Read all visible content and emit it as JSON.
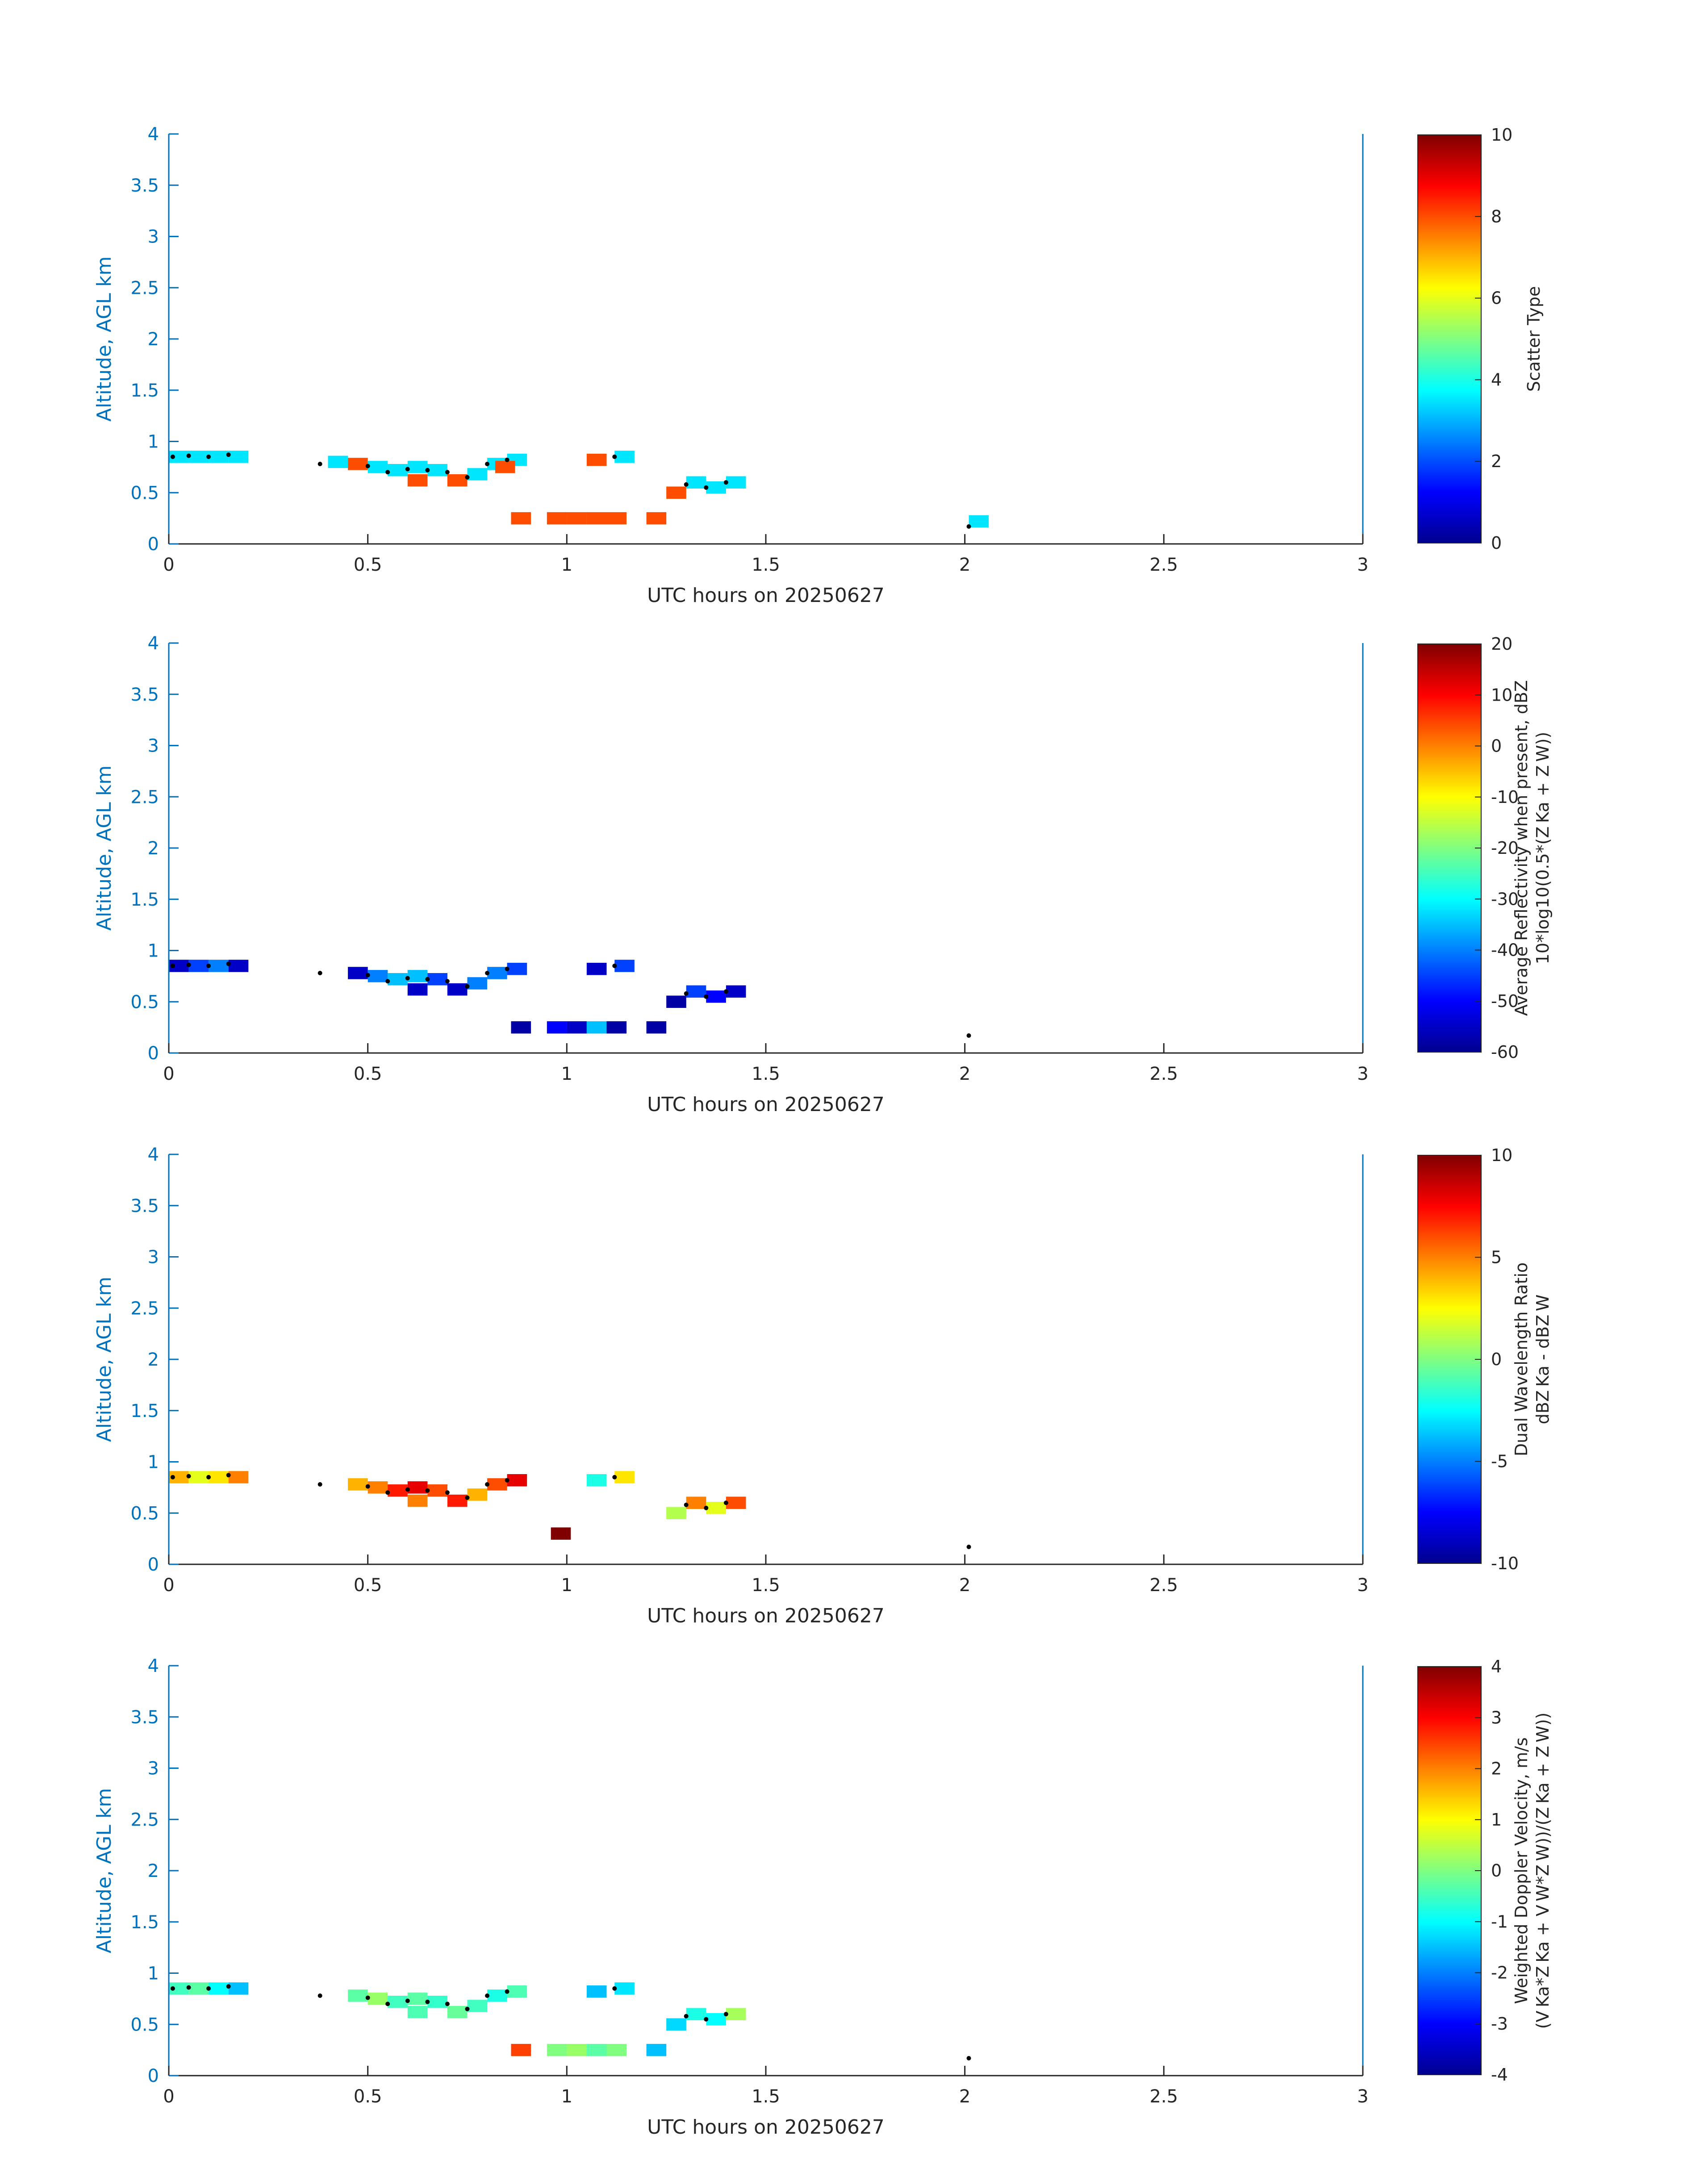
{
  "palette": {
    "axis_blue": "#0072bd",
    "text": "#262626",
    "marker": "#000000",
    "colormap": [
      "#00008f",
      "#0000ff",
      "#0080ff",
      "#00ffff",
      "#80ff80",
      "#ffff00",
      "#ff8000",
      "#ff0000",
      "#800000"
    ]
  },
  "chart_data": [
    {
      "type": "heatmap",
      "title": "",
      "xlabel": "UTC hours on 20250627",
      "ylabel": "Altitude, AGL km",
      "xlim": [
        0,
        3
      ],
      "ylim": [
        0,
        4
      ],
      "xticks": [
        "0",
        "0.5",
        "1",
        "1.5",
        "2",
        "2.5",
        "3"
      ],
      "yticks": [
        "0",
        "0.5",
        "1",
        "1.5",
        "2",
        "2.5",
        "3",
        "3.5",
        "4"
      ],
      "colorbar": {
        "label_lines": [
          "Scatter Type"
        ],
        "clim": [
          0,
          10
        ],
        "ticks": [
          "0",
          "2",
          "4",
          "6",
          "8",
          "10"
        ]
      },
      "cells": [
        [
          0.0,
          0.85,
          3.5
        ],
        [
          0.05,
          0.85,
          3.5
        ],
        [
          0.1,
          0.85,
          3.5
        ],
        [
          0.15,
          0.85,
          3.5
        ],
        [
          0.4,
          0.8,
          3.5
        ],
        [
          0.45,
          0.78,
          8.0
        ],
        [
          0.5,
          0.75,
          3.5
        ],
        [
          0.55,
          0.72,
          3.5
        ],
        [
          0.6,
          0.75,
          3.5
        ],
        [
          0.6,
          0.62,
          8.0
        ],
        [
          0.65,
          0.72,
          3.5
        ],
        [
          0.7,
          0.62,
          8.0
        ],
        [
          0.75,
          0.68,
          3.5
        ],
        [
          0.8,
          0.78,
          3.5
        ],
        [
          0.85,
          0.82,
          3.5
        ],
        [
          0.82,
          0.75,
          8.0
        ],
        [
          0.86,
          0.25,
          8.0
        ],
        [
          0.95,
          0.25,
          8.0
        ],
        [
          1.0,
          0.25,
          8.0
        ],
        [
          1.05,
          0.25,
          8.0
        ],
        [
          1.05,
          0.82,
          8.0
        ],
        [
          1.1,
          0.25,
          8.0
        ],
        [
          1.12,
          0.85,
          3.5
        ],
        [
          1.2,
          0.25,
          8.0
        ],
        [
          1.25,
          0.5,
          8.0
        ],
        [
          1.3,
          0.6,
          3.5
        ],
        [
          1.35,
          0.55,
          3.5
        ],
        [
          1.4,
          0.6,
          3.5
        ],
        [
          2.01,
          0.22,
          3.5
        ]
      ],
      "markers": [
        [
          0.01,
          0.85
        ],
        [
          0.05,
          0.86
        ],
        [
          0.1,
          0.85
        ],
        [
          0.15,
          0.87
        ],
        [
          0.38,
          0.78
        ],
        [
          0.5,
          0.76
        ],
        [
          0.55,
          0.7
        ],
        [
          0.6,
          0.73
        ],
        [
          0.65,
          0.72
        ],
        [
          0.7,
          0.7
        ],
        [
          0.75,
          0.65
        ],
        [
          0.8,
          0.78
        ],
        [
          0.85,
          0.82
        ],
        [
          1.12,
          0.85
        ],
        [
          1.3,
          0.58
        ],
        [
          1.35,
          0.55
        ],
        [
          1.4,
          0.6
        ],
        [
          2.01,
          0.17
        ]
      ]
    },
    {
      "type": "heatmap",
      "title": "",
      "xlabel": "UTC hours on 20250627",
      "ylabel": "Altitude, AGL km",
      "xlim": [
        0,
        3
      ],
      "ylim": [
        0,
        4
      ],
      "xticks": [
        "0",
        "0.5",
        "1",
        "1.5",
        "2",
        "2.5",
        "3"
      ],
      "yticks": [
        "0",
        "0.5",
        "1",
        "1.5",
        "2",
        "2.5",
        "3",
        "3.5",
        "4"
      ],
      "colorbar": {
        "label_lines": [
          "Average Reflectivity when present, dBZ",
          "10*log10(0.5*(Z Ka + Z W))"
        ],
        "clim": [
          -60,
          20
        ],
        "ticks": [
          "-60",
          "-50",
          "-40",
          "-30",
          "-20",
          "-10",
          "0",
          "10",
          "20"
        ]
      },
      "cells": [
        [
          0.0,
          0.85,
          -55
        ],
        [
          0.05,
          0.85,
          -45
        ],
        [
          0.1,
          0.85,
          -40
        ],
        [
          0.15,
          0.85,
          -55
        ],
        [
          0.45,
          0.78,
          -55
        ],
        [
          0.5,
          0.75,
          -40
        ],
        [
          0.55,
          0.72,
          -35
        ],
        [
          0.6,
          0.75,
          -35
        ],
        [
          0.6,
          0.62,
          -55
        ],
        [
          0.65,
          0.72,
          -45
        ],
        [
          0.7,
          0.62,
          -55
        ],
        [
          0.75,
          0.68,
          -40
        ],
        [
          0.8,
          0.78,
          -40
        ],
        [
          0.85,
          0.82,
          -45
        ],
        [
          0.86,
          0.25,
          -58
        ],
        [
          0.95,
          0.25,
          -50
        ],
        [
          1.0,
          0.25,
          -55
        ],
        [
          1.05,
          0.25,
          -35
        ],
        [
          1.05,
          0.82,
          -55
        ],
        [
          1.1,
          0.25,
          -58
        ],
        [
          1.12,
          0.85,
          -45
        ],
        [
          1.2,
          0.25,
          -58
        ],
        [
          1.25,
          0.5,
          -58
        ],
        [
          1.3,
          0.6,
          -45
        ],
        [
          1.35,
          0.55,
          -50
        ],
        [
          1.4,
          0.6,
          -55
        ]
      ],
      "markers": [
        [
          0.01,
          0.85
        ],
        [
          0.05,
          0.86
        ],
        [
          0.1,
          0.85
        ],
        [
          0.15,
          0.87
        ],
        [
          0.38,
          0.78
        ],
        [
          0.5,
          0.76
        ],
        [
          0.55,
          0.7
        ],
        [
          0.6,
          0.73
        ],
        [
          0.65,
          0.72
        ],
        [
          0.7,
          0.7
        ],
        [
          0.75,
          0.65
        ],
        [
          0.8,
          0.78
        ],
        [
          0.85,
          0.82
        ],
        [
          1.12,
          0.85
        ],
        [
          1.3,
          0.58
        ],
        [
          1.35,
          0.55
        ],
        [
          1.4,
          0.6
        ],
        [
          2.01,
          0.17
        ]
      ]
    },
    {
      "type": "heatmap",
      "title": "",
      "xlabel": "UTC hours on 20250627",
      "ylabel": "Altitude, AGL km",
      "xlim": [
        0,
        3
      ],
      "ylim": [
        0,
        4
      ],
      "xticks": [
        "0",
        "0.5",
        "1",
        "1.5",
        "2",
        "2.5",
        "3"
      ],
      "yticks": [
        "0",
        "0.5",
        "1",
        "1.5",
        "2",
        "2.5",
        "3",
        "3.5",
        "4"
      ],
      "colorbar": {
        "label_lines": [
          "Dual Wavelength Ratio",
          "dBZ Ka - dBZ W"
        ],
        "clim": [
          -10,
          10
        ],
        "ticks": [
          "-10",
          "-5",
          "0",
          "5",
          "10"
        ]
      },
      "cells": [
        [
          0.0,
          0.85,
          4
        ],
        [
          0.05,
          0.85,
          2
        ],
        [
          0.1,
          0.85,
          3
        ],
        [
          0.15,
          0.85,
          5
        ],
        [
          0.45,
          0.78,
          4
        ],
        [
          0.5,
          0.75,
          5
        ],
        [
          0.55,
          0.72,
          7
        ],
        [
          0.6,
          0.75,
          8
        ],
        [
          0.6,
          0.62,
          5
        ],
        [
          0.65,
          0.72,
          6
        ],
        [
          0.7,
          0.62,
          7
        ],
        [
          0.75,
          0.68,
          4
        ],
        [
          0.8,
          0.78,
          6
        ],
        [
          0.85,
          0.82,
          8
        ],
        [
          0.96,
          0.3,
          10
        ],
        [
          1.05,
          0.82,
          -2
        ],
        [
          1.12,
          0.85,
          3
        ],
        [
          1.25,
          0.5,
          1
        ],
        [
          1.3,
          0.6,
          5
        ],
        [
          1.35,
          0.55,
          2
        ],
        [
          1.4,
          0.6,
          6
        ]
      ],
      "markers": [
        [
          0.01,
          0.85
        ],
        [
          0.05,
          0.86
        ],
        [
          0.1,
          0.85
        ],
        [
          0.15,
          0.87
        ],
        [
          0.38,
          0.78
        ],
        [
          0.5,
          0.76
        ],
        [
          0.55,
          0.7
        ],
        [
          0.6,
          0.73
        ],
        [
          0.65,
          0.72
        ],
        [
          0.7,
          0.7
        ],
        [
          0.75,
          0.65
        ],
        [
          0.8,
          0.78
        ],
        [
          0.85,
          0.82
        ],
        [
          1.12,
          0.85
        ],
        [
          1.3,
          0.58
        ],
        [
          1.35,
          0.55
        ],
        [
          1.4,
          0.6
        ],
        [
          2.01,
          0.17
        ]
      ]
    },
    {
      "type": "heatmap",
      "title": "",
      "xlabel": "UTC hours on 20250627",
      "ylabel": "Altitude, AGL km",
      "xlim": [
        0,
        3
      ],
      "ylim": [
        0,
        4
      ],
      "xticks": [
        "0",
        "0.5",
        "1",
        "1.5",
        "2",
        "2.5",
        "3"
      ],
      "yticks": [
        "0",
        "0.5",
        "1",
        "1.5",
        "2",
        "2.5",
        "3",
        "3.5",
        "4"
      ],
      "colorbar": {
        "label_lines": [
          "Weighted Doppler Velocity, m/s",
          "(V Ka*Z Ka + V W*Z W))/(Z Ka + Z W))"
        ],
        "clim": [
          -4,
          4
        ],
        "ticks": [
          "-4",
          "-3",
          "-2",
          "-1",
          "0",
          "1",
          "2",
          "3",
          "4"
        ]
      },
      "cells": [
        [
          0.0,
          0.85,
          -0.5
        ],
        [
          0.05,
          0.85,
          -0.3
        ],
        [
          0.1,
          0.85,
          -1.0
        ],
        [
          0.15,
          0.85,
          -1.5
        ],
        [
          0.45,
          0.78,
          -0.3
        ],
        [
          0.5,
          0.75,
          0.2
        ],
        [
          0.55,
          0.72,
          -0.5
        ],
        [
          0.6,
          0.75,
          -0.3
        ],
        [
          0.6,
          0.62,
          -0.4
        ],
        [
          0.65,
          0.72,
          -0.6
        ],
        [
          0.7,
          0.62,
          -0.2
        ],
        [
          0.75,
          0.68,
          -0.5
        ],
        [
          0.8,
          0.78,
          -0.8
        ],
        [
          0.85,
          0.82,
          -0.4
        ],
        [
          0.86,
          0.25,
          2.5
        ],
        [
          0.95,
          0.25,
          0.0
        ],
        [
          1.0,
          0.25,
          0.2
        ],
        [
          1.05,
          0.25,
          -0.3
        ],
        [
          1.05,
          0.82,
          -1.5
        ],
        [
          1.1,
          0.25,
          0.0
        ],
        [
          1.12,
          0.85,
          -1.2
        ],
        [
          1.2,
          0.25,
          -1.5
        ],
        [
          1.25,
          0.5,
          -1.3
        ],
        [
          1.3,
          0.6,
          -0.8
        ],
        [
          1.35,
          0.55,
          -1.0
        ],
        [
          1.4,
          0.6,
          0.3
        ]
      ],
      "markers": [
        [
          0.01,
          0.85
        ],
        [
          0.05,
          0.86
        ],
        [
          0.1,
          0.85
        ],
        [
          0.15,
          0.87
        ],
        [
          0.38,
          0.78
        ],
        [
          0.5,
          0.76
        ],
        [
          0.55,
          0.7
        ],
        [
          0.6,
          0.73
        ],
        [
          0.65,
          0.72
        ],
        [
          0.7,
          0.7
        ],
        [
          0.75,
          0.65
        ],
        [
          0.8,
          0.78
        ],
        [
          0.85,
          0.82
        ],
        [
          1.12,
          0.85
        ],
        [
          1.3,
          0.58
        ],
        [
          1.35,
          0.55
        ],
        [
          1.4,
          0.6
        ],
        [
          2.01,
          0.17
        ]
      ]
    }
  ]
}
